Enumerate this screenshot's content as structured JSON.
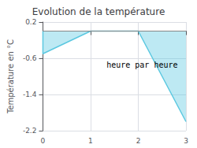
{
  "chart_data": {
    "type": "line",
    "title": "Evolution de la température",
    "xlabel": "heure par heure",
    "ylabel": "Température en °C",
    "x": [
      0,
      0,
      1,
      2,
      3
    ],
    "values": [
      0.0,
      -0.5,
      0.0,
      0.0,
      -2.0
    ],
    "fill_ref": 0.0,
    "color": "#5bc8e0",
    "xlim": [
      0,
      3
    ],
    "xticks": [
      0,
      1,
      2,
      3
    ],
    "ylim": [
      -2.2,
      0.2
    ],
    "yticks": [
      0.2,
      -0.6,
      -1.4,
      -2.2
    ],
    "grid": true
  }
}
